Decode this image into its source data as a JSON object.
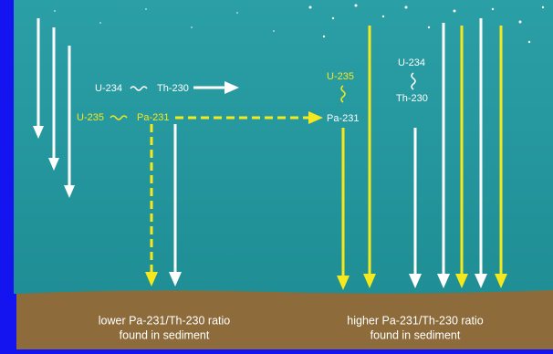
{
  "left": {
    "u234": "U-234",
    "th230": "Th-230",
    "u235": "U-235",
    "pa231": "Pa-231",
    "caption": [
      "lower Pa-231/Th-230 ratio",
      "found in sediment"
    ]
  },
  "right": {
    "u235": "U-235",
    "pa231": "Pa-231",
    "u234": "U-234",
    "th230": "Th-230",
    "caption": [
      "higher Pa-231/Th-230 ratio",
      "found in sediment"
    ]
  }
}
